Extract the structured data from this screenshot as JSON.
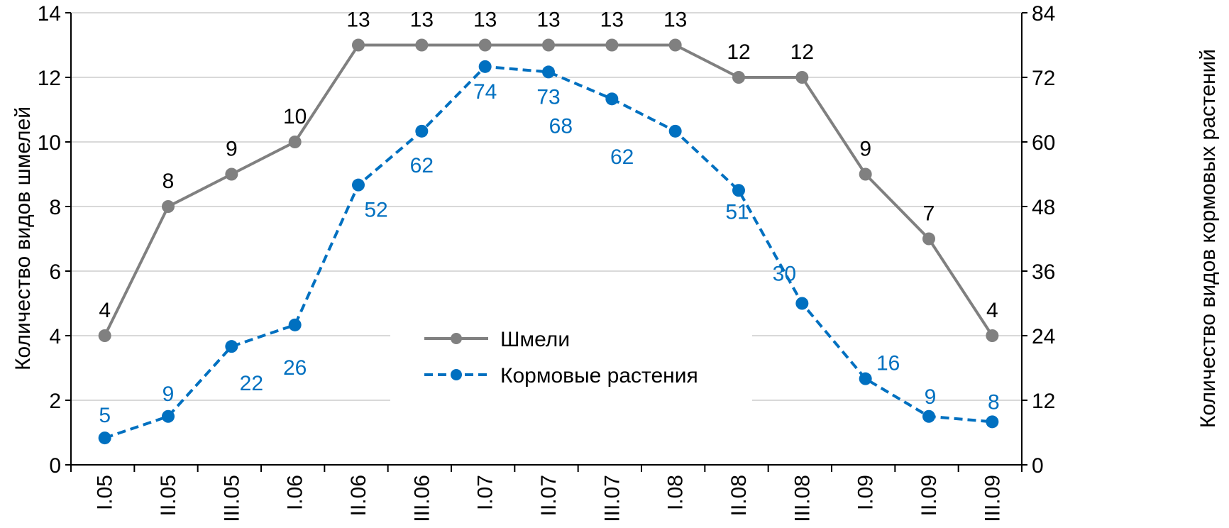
{
  "chart_data": {
    "type": "line",
    "categories": [
      "I.05",
      "II.05",
      "III.05",
      "I.06",
      "II.06",
      "III.06",
      "I.07",
      "II.07",
      "III.07",
      "I.08",
      "II.08",
      "III.08",
      "I.09",
      "II.09",
      "III.09"
    ],
    "series": [
      {
        "name": "Шмели",
        "axis": "left",
        "color": "#808080",
        "style": "solid",
        "values": [
          4,
          8,
          9,
          10,
          13,
          13,
          13,
          13,
          13,
          13,
          12,
          12,
          9,
          7,
          4
        ]
      },
      {
        "name": "Кормовые растения",
        "axis": "right",
        "color": "#0070C0",
        "style": "dashed",
        "values": [
          5,
          9,
          22,
          26,
          52,
          62,
          74,
          73,
          68,
          62,
          51,
          30,
          16,
          9,
          8
        ]
      }
    ],
    "ylabel": "Количество видов шмелей",
    "y2label": "Количество видов кормовых растений",
    "ylim": [
      0,
      14
    ],
    "y2lim": [
      0,
      84
    ],
    "yticks": [
      0,
      2,
      4,
      6,
      8,
      10,
      12,
      14
    ],
    "y2ticks": [
      0,
      12,
      24,
      36,
      48,
      60,
      72,
      84
    ],
    "grid": true,
    "legend": "center"
  }
}
